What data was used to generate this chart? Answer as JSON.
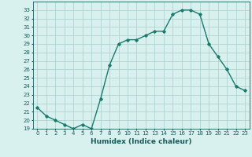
{
  "title": "",
  "xlabel": "Humidex (Indice chaleur)",
  "ylabel": "",
  "x": [
    0,
    1,
    2,
    3,
    4,
    5,
    6,
    7,
    8,
    9,
    10,
    11,
    12,
    13,
    14,
    15,
    16,
    17,
    18,
    19,
    20,
    21,
    22,
    23
  ],
  "y": [
    21.5,
    20.5,
    20.0,
    19.5,
    19.0,
    19.5,
    19.0,
    22.5,
    26.5,
    29.0,
    29.5,
    29.5,
    30.0,
    30.5,
    30.5,
    32.5,
    33.0,
    33.0,
    32.5,
    29.0,
    27.5,
    26.0,
    24.0,
    23.5
  ],
  "ylim": [
    19,
    34
  ],
  "xlim": [
    -0.5,
    23.5
  ],
  "yticks": [
    19,
    20,
    21,
    22,
    23,
    24,
    25,
    26,
    27,
    28,
    29,
    30,
    31,
    32,
    33
  ],
  "xticks": [
    0,
    1,
    2,
    3,
    4,
    5,
    6,
    7,
    8,
    9,
    10,
    11,
    12,
    13,
    14,
    15,
    16,
    17,
    18,
    19,
    20,
    21,
    22,
    23
  ],
  "line_color": "#1a7a6e",
  "marker": "D",
  "marker_size": 1.8,
  "bg_color": "#d8f0ee",
  "grid_color": "#aacfcc",
  "tick_label_size": 5.0,
  "xlabel_size": 6.5,
  "line_width": 1.0
}
